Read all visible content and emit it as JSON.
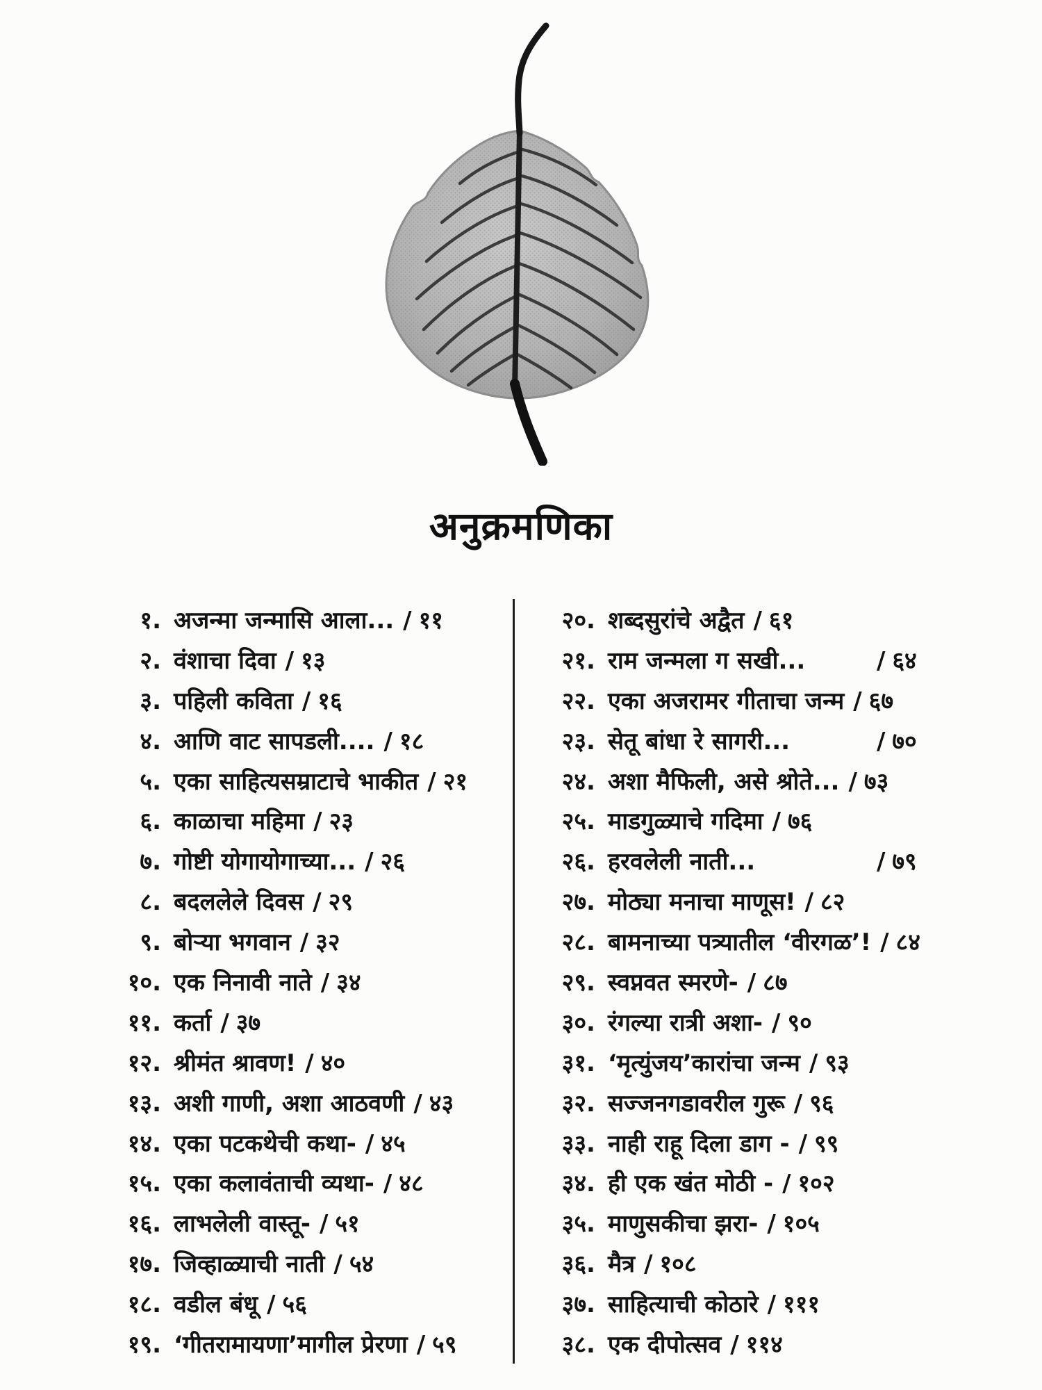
{
  "page": {
    "title": "अनुक्रमणिका",
    "background_color": "#fcfcfa",
    "text_color": "#131313"
  },
  "leaf": {
    "icon": "bodhi-leaf-skeleton-image",
    "body_color_light": "#c6c6c6",
    "body_color_dark": "#969696",
    "vein_color": "#2e2e2e",
    "stem_color": "#161616"
  },
  "toc": {
    "separator": "/",
    "divider_color": "#1c1c1c",
    "left": [
      {
        "num": "१.",
        "title": "अजन्मा जन्मासि आला...",
        "page": "११"
      },
      {
        "num": "२.",
        "title": "वंशाचा दिवा",
        "page": "१३"
      },
      {
        "num": "३.",
        "title": "पहिली कविता",
        "page": "१६"
      },
      {
        "num": "४.",
        "title": "आणि वाट सापडली....",
        "page": "१८"
      },
      {
        "num": "५.",
        "title": "एका साहित्यसम्राटाचे भाकीत",
        "page": "२१"
      },
      {
        "num": "६.",
        "title": "काळाचा महिमा",
        "page": "२३"
      },
      {
        "num": "७.",
        "title": "गोष्टी योगायोगाच्या...",
        "page": "२६"
      },
      {
        "num": "८.",
        "title": "बदललेले दिवस",
        "page": "२९"
      },
      {
        "num": "९.",
        "title": "बोऱ्या भगवान",
        "page": "३२"
      },
      {
        "num": "१०.",
        "title": "एक निनावी नाते",
        "page": "३४"
      },
      {
        "num": "११.",
        "title": "कर्ता",
        "page": "३७"
      },
      {
        "num": "१२.",
        "title": "श्रीमंत श्रावण!",
        "page": "४०"
      },
      {
        "num": "१३.",
        "title": "अशी गाणी, अशा आठवणी",
        "page": "४३"
      },
      {
        "num": "१४.",
        "title": "एका पटकथेची कथा-",
        "page": "४५"
      },
      {
        "num": "१५.",
        "title": "एका कलावंताची व्यथा-",
        "page": "४८"
      },
      {
        "num": "१६.",
        "title": "लाभलेली वास्तू-",
        "page": "५१"
      },
      {
        "num": "१७.",
        "title": "जिव्हाळ्याची नाती",
        "page": "५४"
      },
      {
        "num": "१८.",
        "title": "वडील बंधू",
        "page": "५६"
      },
      {
        "num": "१९.",
        "title": "‘गीतरामायणा’मागील प्रेरणा",
        "page": "५९"
      }
    ],
    "right": [
      {
        "num": "२०.",
        "title": "शब्दसुरांचे अद्वैत",
        "page": "६१"
      },
      {
        "num": "२१.",
        "title": "राम जन्मला ग सखी...",
        "page": "६४",
        "gap": true
      },
      {
        "num": "२२.",
        "title": "एका अजरामर गीताचा जन्म",
        "page": "६७"
      },
      {
        "num": "२३.",
        "title": "सेतू बांधा रे सागरी...",
        "page": "७०",
        "gap": true
      },
      {
        "num": "२४.",
        "title": "अशा मैफिली, असे श्रोते...",
        "page": "७३"
      },
      {
        "num": "२५.",
        "title": "माडगुळ्याचे गदिमा",
        "page": "७६"
      },
      {
        "num": "२६.",
        "title": "हरवलेली नाती...",
        "page": "७९",
        "gap": true
      },
      {
        "num": "२७.",
        "title": "मोठ्या मनाचा माणूस!",
        "page": "८२"
      },
      {
        "num": "२८.",
        "title": "बामनाच्या पत्र्यातील ‘वीरगळ’!",
        "page": "८४"
      },
      {
        "num": "२९.",
        "title": "स्वप्नवत स्मरणे-",
        "page": "८७"
      },
      {
        "num": "३०.",
        "title": "रंगल्या रात्री अशा-",
        "page": "९०"
      },
      {
        "num": "३१.",
        "title": "‘मृत्युंजय’कारांचा जन्म",
        "page": "९३"
      },
      {
        "num": "३२.",
        "title": "सज्जनगडावरील गुरू",
        "page": "९६"
      },
      {
        "num": "३३.",
        "title": "नाही राहू दिला डाग -",
        "page": "९९"
      },
      {
        "num": "३४.",
        "title": "ही एक खंत मोठी -",
        "page": "१०२"
      },
      {
        "num": "३५.",
        "title": "माणुसकीचा झरा-",
        "page": "१०५"
      },
      {
        "num": "३६.",
        "title": "मैत्र",
        "page": "१०८"
      },
      {
        "num": "३७.",
        "title": "साहित्याची कोठारे",
        "page": "१११"
      },
      {
        "num": "३८.",
        "title": "एक दीपोत्सव",
        "page": "११४"
      }
    ]
  }
}
